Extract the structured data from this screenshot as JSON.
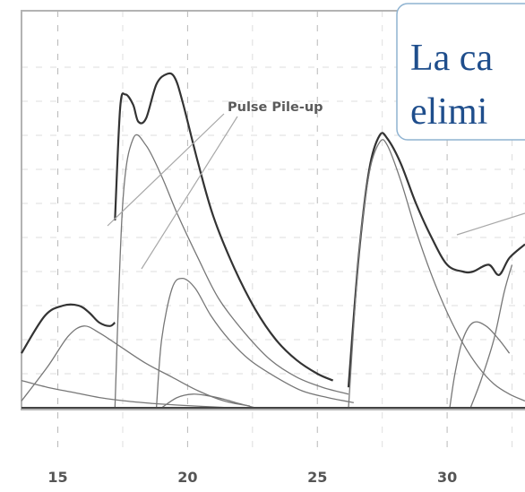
{
  "chart_data": {
    "type": "line",
    "title": "",
    "xlabel": "",
    "ylabel": "",
    "xlim": [
      13.6,
      33
    ],
    "ylim": [
      0,
      100
    ],
    "x_ticks": [
      15,
      20,
      25,
      30
    ],
    "grid": true,
    "annotation": "Pulse Pile-up",
    "series": [
      {
        "x": [
          13.6,
          14.5,
          15.2,
          15.8,
          16.2,
          16.6,
          17.0,
          17.2
        ],
        "y": [
          16,
          27,
          30,
          30,
          28,
          25,
          24,
          25
        ]
      },
      {
        "x": [
          17.2,
          17.4,
          17.6,
          17.9,
          18.1,
          18.4,
          18.8,
          19.2,
          19.5,
          19.8,
          20.4,
          21.0,
          21.8,
          22.6,
          23.4,
          24.2,
          25.0,
          25.6
        ],
        "y": [
          55,
          88,
          92,
          89,
          84,
          85,
          95,
          98,
          97,
          90,
          72,
          56,
          41,
          29,
          20,
          14,
          10,
          8
        ]
      },
      {
        "x": [
          26.2,
          26.6,
          27.0,
          27.4,
          27.7,
          28.2,
          28.8,
          29.4,
          30.0,
          30.6,
          31.0,
          31.6,
          32.0,
          32.4,
          33.0
        ],
        "y": [
          6,
          45,
          70,
          80,
          79,
          72,
          60,
          50,
          42,
          40,
          40,
          42,
          39,
          44,
          48
        ]
      },
      {
        "x": [
          13.6,
          14.6,
          15.4,
          16.0,
          16.6,
          17.4,
          18.4,
          19.4,
          20.4,
          21.4,
          22.4
        ],
        "y": [
          2,
          12,
          21,
          24,
          22,
          18,
          13,
          9,
          5,
          2,
          0.5
        ]
      },
      {
        "x": [
          17.2,
          17.5,
          17.9,
          18.4,
          19.0,
          19.6,
          20.4,
          21.2,
          22.2,
          23.2,
          24.2,
          25.2,
          26.2
        ],
        "y": [
          0,
          60,
          79,
          77,
          68,
          57,
          44,
          32,
          22,
          14,
          9,
          6,
          4
        ]
      },
      {
        "x": [
          18.8,
          19.0,
          19.4,
          19.8,
          20.3,
          20.9,
          21.6,
          22.4,
          23.4,
          24.4,
          25.4,
          26.4
        ],
        "y": [
          0,
          20,
          35,
          38,
          35,
          27,
          20,
          14,
          9,
          5,
          3,
          1.5
        ]
      },
      {
        "x": [
          19.0,
          19.6,
          20.2,
          20.8,
          21.4,
          22.0,
          22.6
        ],
        "y": [
          0,
          3,
          4,
          3.5,
          2.5,
          1.2,
          0
        ]
      },
      {
        "x": [
          26.2,
          26.6,
          27.0,
          27.4,
          27.7,
          28.2,
          28.8,
          29.4,
          30.0,
          30.6,
          31.2,
          31.8,
          32.4,
          33.0
        ],
        "y": [
          0,
          45,
          69,
          78,
          77,
          67,
          52,
          39,
          28,
          19,
          12,
          7,
          4,
          2
        ]
      },
      {
        "x": [
          30.1,
          30.3,
          30.6,
          31.0,
          31.5,
          32.0,
          32.4
        ],
        "y": [
          0,
          10,
          20,
          25,
          24,
          20,
          16
        ]
      },
      {
        "x": [
          30.9,
          31.3,
          31.8,
          32.2,
          32.5
        ],
        "y": [
          0,
          8,
          20,
          34,
          42
        ]
      },
      {
        "x": [
          13.6,
          14.6,
          15.6,
          16.6,
          17.6,
          18.6,
          19.6,
          20.6,
          21.6
        ],
        "y": [
          8,
          6,
          4.5,
          3,
          2,
          1.3,
          0.8,
          0.4,
          0
        ]
      }
    ]
  },
  "callout": {
    "line1": "La ca",
    "line2": "elimi"
  }
}
